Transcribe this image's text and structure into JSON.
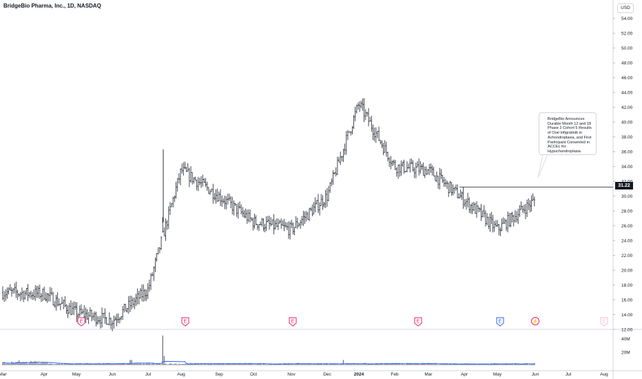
{
  "header": {
    "title": "BridgeBio Pharma, Inc., 1D, NASDAQ",
    "currency": "USD"
  },
  "annotation": {
    "text": "BridgeBio Announces Durable Month 12 and 18 Phase 2 Cohort 5 Results of Oral Infigratinib in Achondroplasia, and First Participant Consented in ACCEL for Hypochondroplasia"
  },
  "last_price": {
    "label": "31.22",
    "value": 31.22
  },
  "colors": {
    "bars": "#131722",
    "volume": "#787b86",
    "volume_ma": "#2962ff",
    "event_red": "#e91e63",
    "event_blue": "#2962ff",
    "grid": "#e0e3eb"
  },
  "chart_data": {
    "type": "ohlc",
    "title": "BridgeBio Pharma, Inc., 1D, NASDAQ",
    "ylabel": "USD",
    "ylim": [
      12,
      55
    ],
    "yticks": [
      "54.00",
      "52.00",
      "50.00",
      "48.00",
      "46.00",
      "44.00",
      "42.00",
      "40.00",
      "38.00",
      "36.00",
      "34.00",
      "32.00",
      "30.00",
      "28.00",
      "26.00",
      "24.00",
      "22.00",
      "20.00",
      "18.00",
      "16.00",
      "14.00",
      "12.00"
    ],
    "x_axis_labels": [
      "Mar",
      "Apr",
      "May",
      "Jun",
      "Jul",
      "Aug",
      "Sep",
      "Oct",
      "Nov",
      "Dec",
      "2024",
      "Feb",
      "Mar",
      "Apr",
      "May",
      "Jun",
      "Jul",
      "Aug"
    ],
    "price_path_months": [
      "Mar",
      "Apr",
      "May",
      "Jun",
      "Jul",
      "Aug",
      "Sep",
      "Oct",
      "Nov",
      "Dec",
      "2024",
      "Feb",
      "Mar",
      "Apr",
      "May",
      "Jun"
    ],
    "price_path_closes": [
      17.0,
      16.8,
      14.2,
      13.2,
      17.4,
      33.5,
      30.0,
      26.5,
      25.5,
      30.0,
      42.5,
      34.0,
      33.5,
      29.5,
      25.5,
      29.5
    ],
    "price_path_highs": [
      20.0,
      18.6,
      16.8,
      15.0,
      18.8,
      36.3,
      31.5,
      28.0,
      29.0,
      31.0,
      44.3,
      41.0,
      36.8,
      31.2,
      28.5,
      31.2
    ],
    "price_path_lows": [
      12.8,
      14.4,
      13.2,
      12.6,
      15.4,
      26.5,
      28.0,
      23.8,
      23.7,
      27.5,
      34.0,
      32.8,
      27.5,
      26.9,
      23.9,
      27.2
    ],
    "horizontal_line": 31.22,
    "volume_axis": [
      "40M",
      "20M"
    ],
    "volume_spikes": [
      {
        "month": "Jul",
        "value": 45
      },
      {
        "month": "Dec",
        "value": 8
      }
    ],
    "events": [
      {
        "type": "earnings",
        "label": "E",
        "month": "May"
      },
      {
        "type": "earnings",
        "label": "E",
        "month": "Aug"
      },
      {
        "type": "earnings",
        "label": "E",
        "month": "Nov"
      },
      {
        "type": "earnings",
        "label": "E",
        "month": "Feb"
      },
      {
        "type": "earnings",
        "label": "E",
        "month": "May",
        "color": "blue"
      },
      {
        "type": "news",
        "label": "⚡",
        "month": "Jun"
      },
      {
        "type": "earnings",
        "label": "E",
        "month": "Aug",
        "color": "faded"
      }
    ]
  }
}
